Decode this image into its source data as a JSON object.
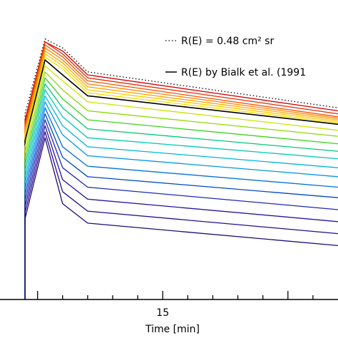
{
  "chart_data": {
    "type": "line",
    "xlabel": "Time [min]",
    "ylabel": "",
    "x_ticks": [
      {
        "value": 15,
        "label": "15"
      }
    ],
    "xlim": [
      8.5,
      22
    ],
    "ylim": [
      0,
      1
    ],
    "grid": false,
    "legend_position": "top-right",
    "legend": [
      {
        "label": "R(E) = 0.48 cm² sr",
        "style": "dotted",
        "color": "#000000"
      },
      {
        "label": "R(E) by Bialk et al. (1991",
        "style": "solid",
        "color": "#000000"
      }
    ],
    "x": [
      9.5,
      10.3,
      11.0,
      12.0,
      22.0
    ],
    "series": [
      {
        "kind": "dotted",
        "color": "#000000",
        "values": [
          0.62,
          0.87,
          0.84,
          0.76,
          0.64
        ]
      },
      {
        "kind": "colored",
        "color": "#d40000",
        "values": [
          0.6,
          0.86,
          0.83,
          0.75,
          0.63
        ]
      },
      {
        "kind": "colored",
        "color": "#e62a00",
        "values": [
          0.59,
          0.86,
          0.82,
          0.74,
          0.62
        ]
      },
      {
        "kind": "colored",
        "color": "#f25500",
        "values": [
          0.58,
          0.85,
          0.81,
          0.73,
          0.61
        ]
      },
      {
        "kind": "colored",
        "color": "#ff8000",
        "values": [
          0.57,
          0.84,
          0.8,
          0.72,
          0.605
        ]
      },
      {
        "kind": "colored",
        "color": "#ffa500",
        "values": [
          0.56,
          0.83,
          0.79,
          0.71,
          0.6
        ]
      },
      {
        "kind": "colored",
        "color": "#ffc800",
        "values": [
          0.55,
          0.82,
          0.78,
          0.7,
          0.595
        ]
      },
      {
        "kind": "colored",
        "color": "#f0e000",
        "values": [
          0.54,
          0.81,
          0.77,
          0.69,
          0.59
        ]
      },
      {
        "kind": "black",
        "color": "#000000",
        "values": [
          0.53,
          0.8,
          0.75,
          0.68,
          0.585
        ]
      },
      {
        "kind": "colored",
        "color": "#c8e600",
        "values": [
          0.51,
          0.78,
          0.73,
          0.66,
          0.565
        ]
      },
      {
        "kind": "colored",
        "color": "#8cdc00",
        "values": [
          0.49,
          0.76,
          0.7,
          0.63,
          0.545
        ]
      },
      {
        "kind": "colored",
        "color": "#3cd21e",
        "values": [
          0.47,
          0.74,
          0.67,
          0.6,
          0.52
        ]
      },
      {
        "kind": "colored",
        "color": "#00c878",
        "values": [
          0.45,
          0.72,
          0.64,
          0.57,
          0.495
        ]
      },
      {
        "kind": "colored",
        "color": "#00c8b4",
        "values": [
          0.43,
          0.7,
          0.61,
          0.54,
          0.47
        ]
      },
      {
        "kind": "colored",
        "color": "#00b4dc",
        "values": [
          0.41,
          0.68,
          0.58,
          0.51,
          0.44
        ]
      },
      {
        "kind": "colored",
        "color": "#0096e6",
        "values": [
          0.39,
          0.66,
          0.55,
          0.48,
          0.41
        ]
      },
      {
        "kind": "colored",
        "color": "#0070dc",
        "values": [
          0.37,
          0.64,
          0.51,
          0.445,
          0.375
        ]
      },
      {
        "kind": "colored",
        "color": "#0046c8",
        "values": [
          0.35,
          0.62,
          0.475,
          0.41,
          0.34
        ]
      },
      {
        "kind": "colored",
        "color": "#1e28b4",
        "values": [
          0.33,
          0.6,
          0.44,
          0.375,
          0.3
        ]
      },
      {
        "kind": "colored",
        "color": "#2814a0",
        "values": [
          0.31,
          0.58,
          0.4,
          0.335,
          0.26
        ]
      },
      {
        "kind": "colored",
        "color": "#280a8c",
        "values": [
          0.29,
          0.56,
          0.36,
          0.295,
          0.22
        ]
      },
      {
        "kind": "colored",
        "color": "#1e0a78",
        "values": [
          0.27,
          0.54,
          0.32,
          0.255,
          0.18
        ]
      }
    ]
  }
}
